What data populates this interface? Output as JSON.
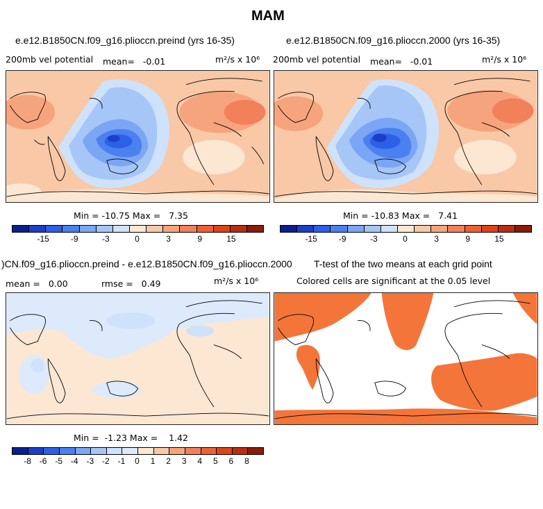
{
  "chart_data": [
    {
      "type": "heatmap",
      "title": "e.e12.B1850CN.f09_g16.plioccn.preind (yrs 16-35)",
      "variable": "200mb vel potential",
      "mean_label": "mean=",
      "mean_value": "-0.01",
      "units": "m²/s x 10⁶",
      "min_label": "Min =",
      "min_value": "-10.75",
      "max_label": "Max =",
      "max_value": "7.35",
      "colorbar_ticks": [
        "-15",
        "-9",
        "-3",
        "0",
        "3",
        "9",
        "15"
      ]
    },
    {
      "type": "heatmap",
      "title": "e.e12.B1850CN.f09_g16.plioccn.2000 (yrs 16-35)",
      "variable": "200mb vel potential",
      "mean_label": "mean=",
      "mean_value": "-0.01",
      "units": "m²/s x 10⁶",
      "min_label": "Min =",
      "min_value": "-10.83",
      "max_label": "Max =",
      "max_value": "7.41",
      "colorbar_ticks": [
        "-15",
        "-9",
        "-3",
        "0",
        "3",
        "9",
        "15"
      ]
    },
    {
      "type": "heatmap",
      "title": ")CN.f09_g16.plioccn.preind - e.e12.B1850CN.f09_g16.plioccn.2000",
      "mean_label": "mean =",
      "mean_value": "0.00",
      "rmse_label": "rmse =",
      "rmse_value": "0.49",
      "units": "m²/s x 10⁶",
      "min_label": "Min =",
      "min_value": "-1.23",
      "max_label": "Max =",
      "max_value": "1.42",
      "colorbar_ticks": [
        "-8",
        "-6",
        "-5",
        "-4",
        "-3",
        "-2",
        "-1",
        "0",
        "1",
        "2",
        "3",
        "4",
        "5",
        "6",
        "8"
      ]
    },
    {
      "type": "heatmap",
      "title": "T-test of the two means at each grid point",
      "subtitle": "Colored cells are significant at the 0.05 level",
      "significance_level": 0.05
    }
  ],
  "figure_title": "MAM",
  "colors": {
    "full_scale": [
      "#0a1f8f",
      "#1a40c8",
      "#2d60e6",
      "#4a80f0",
      "#7aa6f4",
      "#a6c6f7",
      "#cfe2fb",
      "#fbe7d2",
      "#f9c8a6",
      "#f6a47d",
      "#f2805a",
      "#ee6136",
      "#dd4418",
      "#b92e12",
      "#8c1a0a"
    ],
    "diff_scale": [
      "#0a1f8f",
      "#1a40c8",
      "#2d60e6",
      "#4a80f0",
      "#7aa6f4",
      "#a6c6f7",
      "#cfe2fb",
      "#ddeafb",
      "#fbe7d2",
      "#f9c8a6",
      "#f6a47d",
      "#f2805a",
      "#ee6136",
      "#dd4418",
      "#b92e12",
      "#8c1a0a"
    ],
    "significant": "#f4753a"
  }
}
